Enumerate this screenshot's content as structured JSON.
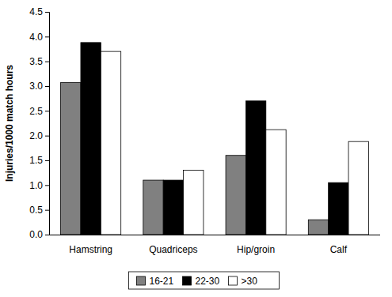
{
  "chart_data": {
    "type": "bar",
    "y_label": "Injuries/1000 match hours",
    "categories": [
      "Hamstring",
      "Quadriceps",
      "Hip/groin",
      "Calf"
    ],
    "series": [
      {
        "name": "16-21",
        "color": "#808080",
        "values": [
          3.07,
          1.1,
          1.6,
          0.3
        ]
      },
      {
        "name": "22-30",
        "color": "#000000",
        "values": [
          3.88,
          1.1,
          2.7,
          1.05
        ]
      },
      {
        "name": ">30",
        "color": "#ffffff",
        "values": [
          3.7,
          1.3,
          2.12,
          1.88
        ]
      }
    ],
    "ylim": [
      0,
      4.5
    ],
    "yticks": [
      {
        "value": 0,
        "label": "0.0"
      },
      0.5,
      {
        "value": 1,
        "label": "1.0"
      },
      1.5,
      {
        "value": 2,
        "label": "2.0"
      },
      2.5,
      {
        "value": 3,
        "label": "3.0"
      },
      3.5,
      {
        "value": 4,
        "label": "4.0"
      },
      4.5
    ],
    "grid": false,
    "legend": "bottom"
  }
}
